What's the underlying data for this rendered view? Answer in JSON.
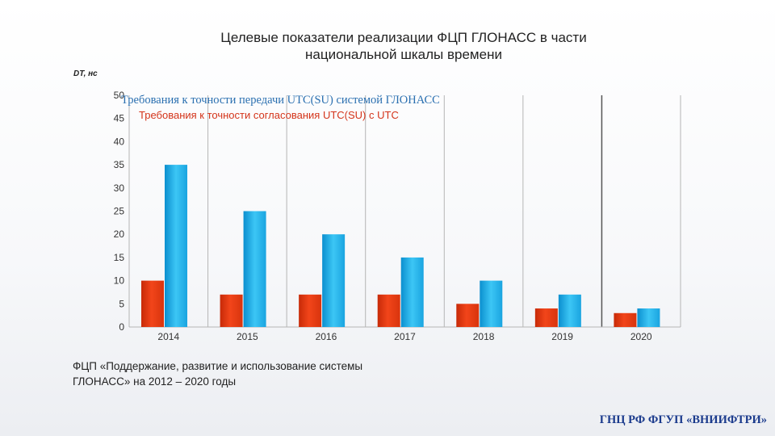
{
  "slide": {
    "title_line1": "Целевые показатели реализации ФЦП ГЛОНАСС в части",
    "title_line2": "национальной шкалы времени",
    "note_line1": "ФЦП «Поддержание, развитие и использование системы",
    "note_line2": "ГЛОНАСС» на 2012 – 2020  годы",
    "footer": "ГНЦ РФ ФГУП «ВНИИФТРИ»"
  },
  "chart_data": {
    "type": "bar",
    "title": "Целевые показатели реализации ФЦП ГЛОНАСС в части национальной шкалы времени",
    "ylabel": "DT, нс",
    "xlabel": "",
    "ylim": [
      0,
      50
    ],
    "yticks": [
      "0",
      "5",
      "10",
      "15",
      "20",
      "25",
      "30",
      "35",
      "40",
      "45",
      "50"
    ],
    "categories": [
      "2014",
      "2015",
      "2016",
      "2017",
      "2018",
      "2019",
      "2020"
    ],
    "grid": "vertical",
    "legend_position": "top-left",
    "series": [
      {
        "name": "Требования к точности согласования UTC(SU) с UTC",
        "color": "#e8380d",
        "values": [
          10,
          7,
          7,
          7,
          5,
          4,
          3
        ]
      },
      {
        "name": "Требования к точности передачи UTC(SU) системой ГЛОНАСС",
        "color": "#1ab0ea",
        "values": [
          35,
          25,
          20,
          15,
          10,
          7,
          4
        ]
      }
    ]
  }
}
